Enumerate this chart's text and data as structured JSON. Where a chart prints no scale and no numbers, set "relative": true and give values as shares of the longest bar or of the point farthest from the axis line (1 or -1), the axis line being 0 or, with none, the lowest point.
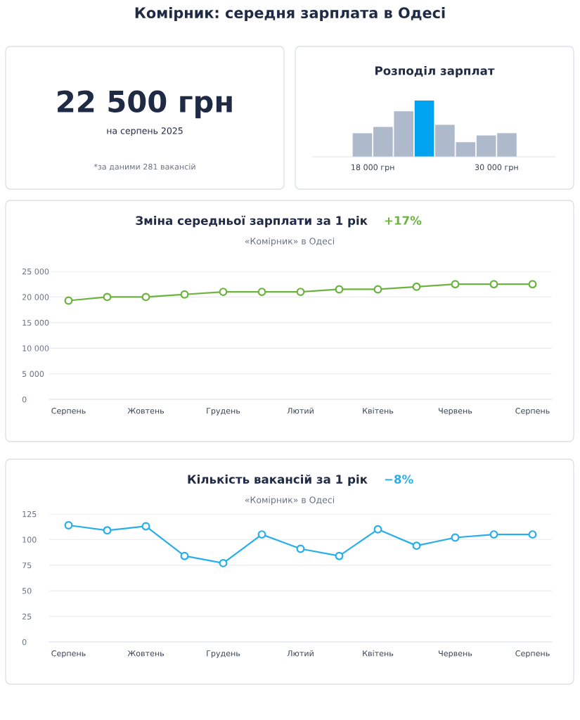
{
  "chart_data": [
    {
      "type": "other",
      "title": "Комірник: середня зарплата в Одесі",
      "annotations": [
        "22 500 грн",
        "на серпень 2025",
        "*за даними 281 вакансій"
      ]
    },
    {
      "type": "bar",
      "title": "Розподіл зарплат",
      "relative": true,
      "x": [
        17000,
        19000,
        21000,
        23000,
        25000,
        27000,
        29000,
        31000
      ],
      "values": [
        0.42,
        0.53,
        0.81,
        1,
        0.57,
        0.26,
        0.38,
        0.42
      ],
      "colors": [
        "#aeb9cc",
        "#aeb9cc",
        "#aeb9cc",
        "#00a3ef",
        "#aeb9cc",
        "#aeb9cc",
        "#aeb9cc",
        "#aeb9cc"
      ],
      "xlim": [
        12200,
        35700
      ],
      "xticks": [
        {
          "value": 18000,
          "label": "18 000 грн"
        },
        {
          "value": 30000,
          "label": "30 000 грн"
        }
      ],
      "tick_labels": "x"
    },
    {
      "type": "line",
      "title": "Зміна середньої зарплати за 1 рік",
      "subtitle": "«Комірник» в Одесі",
      "annotations": [
        "+17%"
      ],
      "categories": [
        "Серпень",
        null,
        "Жовтень",
        null,
        "Грудень",
        null,
        "Лютий",
        null,
        "Квітень",
        null,
        "Червень",
        null,
        "Серпень"
      ],
      "series": [
        {
          "color": "#6db33f",
          "values": [
            19300,
            20000,
            20000,
            20500,
            21000,
            21000,
            21000,
            21500,
            21500,
            22000,
            22500,
            22500,
            22500
          ]
        }
      ],
      "ylim": [
        0,
        25000
      ],
      "yticks": [
        {
          "value": 0,
          "label": "0"
        },
        {
          "value": 5000,
          "label": "5 000"
        },
        {
          "value": 10000,
          "label": "10 000"
        },
        {
          "value": 15000,
          "label": "15 000"
        },
        {
          "value": 20000,
          "label": "20 000"
        },
        {
          "value": 25000,
          "label": "25 000"
        }
      ],
      "grid": "y",
      "marker": "circle"
    },
    {
      "type": "line",
      "title": "Кількість вакансій за 1 рік",
      "subtitle": "«Комірник» в Одесі",
      "annotations": [
        "−8%"
      ],
      "categories": [
        "Серпень",
        null,
        "Жовтень",
        null,
        "Грудень",
        null,
        "Лютий",
        null,
        "Квітень",
        null,
        "Червень",
        null,
        "Серпень"
      ],
      "series": [
        {
          "color": "#29aeec",
          "values": [
            114,
            109,
            113,
            84,
            77,
            105,
            91,
            84,
            110,
            94,
            102,
            105,
            105
          ]
        }
      ],
      "ylim": [
        0,
        125
      ],
      "yticks": [
        0,
        25,
        50,
        75,
        100,
        125
      ],
      "grid": "y",
      "marker": "circle"
    }
  ]
}
